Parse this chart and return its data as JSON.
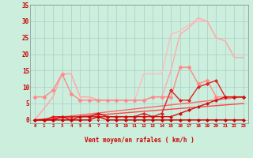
{
  "title": "Vent moyen/en rafales ( km/h )",
  "background_color": "#cceedd",
  "grid_color": "#aacccc",
  "x_min": 0,
  "x_max": 23,
  "y_min": 0,
  "y_max": 35,
  "y_ticks": [
    0,
    5,
    10,
    15,
    20,
    25,
    30,
    35
  ],
  "x_ticks": [
    0,
    1,
    2,
    3,
    4,
    5,
    6,
    7,
    8,
    9,
    10,
    11,
    12,
    13,
    14,
    15,
    16,
    17,
    18,
    19,
    20,
    21,
    22,
    23
  ],
  "lines": [
    {
      "color": "#ffbbbb",
      "lw": 1.0,
      "marker": null,
      "x": [
        0,
        2,
        3,
        4,
        5,
        6,
        7,
        8,
        9,
        10,
        11,
        12,
        13,
        14,
        15,
        16,
        17,
        18,
        19,
        20,
        21,
        22,
        23
      ],
      "y": [
        0,
        7,
        14,
        14,
        7,
        7,
        6,
        6,
        6,
        6,
        6,
        14,
        14,
        14,
        26,
        27,
        29,
        30,
        30,
        25,
        24,
        19,
        19
      ]
    },
    {
      "color": "#ffaaaa",
      "lw": 1.0,
      "marker": null,
      "x": [
        0,
        2,
        3,
        4,
        5,
        6,
        7,
        8,
        9,
        10,
        11,
        12,
        13,
        14,
        15,
        16,
        17,
        18,
        19,
        20,
        21,
        22,
        23
      ],
      "y": [
        0,
        7,
        14,
        14,
        7,
        7,
        6,
        6,
        6,
        6,
        6,
        6,
        7,
        7,
        15,
        26,
        28,
        31,
        30,
        25,
        24,
        19,
        19
      ]
    },
    {
      "color": "#ff8888",
      "lw": 1.0,
      "marker": "D",
      "markersize": 2.5,
      "x": [
        0,
        1,
        2,
        3,
        4,
        5,
        6,
        7,
        8,
        9,
        10,
        11,
        12,
        13,
        14,
        15,
        16,
        17,
        18,
        19,
        20,
        21,
        22,
        23
      ],
      "y": [
        7,
        7,
        9,
        14,
        8,
        6,
        6,
        6,
        6,
        6,
        6,
        6,
        6,
        7,
        7,
        7,
        16,
        16,
        11,
        12,
        7,
        7,
        7,
        7
      ]
    },
    {
      "color": "#ff6666",
      "lw": 1.0,
      "marker": null,
      "x": [
        0,
        23
      ],
      "y": [
        0,
        7
      ]
    },
    {
      "color": "#ff4444",
      "lw": 1.0,
      "marker": null,
      "x": [
        0,
        23
      ],
      "y": [
        0,
        5
      ]
    },
    {
      "color": "#dd2222",
      "lw": 1.0,
      "marker": "D",
      "markersize": 2.0,
      "x": [
        0,
        1,
        2,
        3,
        4,
        5,
        6,
        7,
        8,
        9,
        10,
        11,
        12,
        13,
        14,
        15,
        16,
        17,
        18,
        19,
        20,
        21,
        22,
        23
      ],
      "y": [
        0,
        0,
        1,
        1,
        1,
        1,
        1,
        1,
        1,
        1,
        1,
        1,
        2,
        1,
        2,
        9,
        6,
        6,
        10,
        11,
        12,
        7,
        7,
        7
      ]
    },
    {
      "color": "#cc1111",
      "lw": 1.0,
      "marker": "D",
      "markersize": 2.0,
      "x": [
        0,
        1,
        2,
        3,
        4,
        5,
        6,
        7,
        8,
        9,
        10,
        11,
        12,
        13,
        14,
        15,
        16,
        17,
        18,
        19,
        20,
        21,
        22,
        23
      ],
      "y": [
        0,
        0,
        0,
        1,
        0,
        1,
        1,
        2,
        1,
        1,
        1,
        1,
        1,
        1,
        1,
        1,
        2,
        3,
        4,
        5,
        6,
        7,
        7,
        7
      ]
    },
    {
      "color": "#cc0000",
      "lw": 1.0,
      "marker": "D",
      "markersize": 2.0,
      "x": [
        0,
        1,
        2,
        3,
        4,
        5,
        6,
        7,
        8,
        9,
        10,
        11,
        12,
        13,
        14,
        15,
        16,
        17,
        18,
        19,
        20,
        21,
        22,
        23
      ],
      "y": [
        0,
        0,
        0,
        0,
        0,
        0,
        0,
        1,
        0,
        0,
        0,
        0,
        0,
        0,
        0,
        0,
        0,
        0,
        0,
        0,
        0,
        0,
        0,
        0
      ]
    }
  ],
  "arrow_color": "#cc0000",
  "tick_color": "#cc0000",
  "label_color": "#cc0000",
  "spine_color": "#888888"
}
